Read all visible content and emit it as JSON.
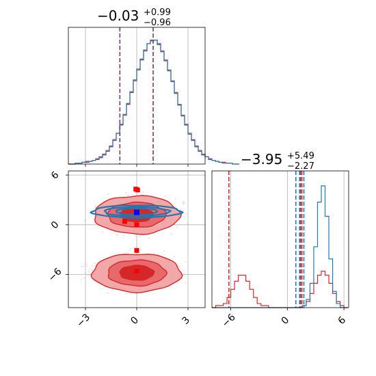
{
  "figure": {
    "type": "corner_plot",
    "colors": {
      "red": "#d62728",
      "blue": "#1f77b4",
      "marker_blue": "#0000ff",
      "marker_red": "#ff0000",
      "grid": "#b0b0b0",
      "fill_light": "#f0a0a0",
      "fill_dark": "#d62728"
    }
  },
  "chart_data": [
    {
      "panel": "top-left",
      "type": "histogram",
      "title": {
        "value": "−0.03",
        "plus": "+0.99",
        "minus": "−0.96"
      },
      "xlim": [
        -4,
        4
      ],
      "grid": true,
      "bins_edges_start": -4.0,
      "bin_width": 0.2,
      "series": [
        {
          "color": "red",
          "counts": [
            0,
            0,
            1,
            1,
            2,
            2,
            3,
            4,
            6,
            8,
            11,
            15,
            20,
            27,
            34,
            44,
            54,
            66,
            79,
            92,
            104,
            115,
            125,
            133,
            137,
            137,
            133,
            125,
            115,
            104,
            92,
            79,
            66,
            54,
            44,
            34,
            27,
            20,
            15,
            11,
            8,
            6,
            4,
            3,
            2,
            2,
            1,
            1,
            0,
            0
          ]
        },
        {
          "color": "blue",
          "counts": [
            0,
            0,
            1,
            1,
            2,
            3,
            3,
            4,
            5,
            7,
            10,
            14,
            19,
            26,
            34,
            43,
            55,
            67,
            80,
            93,
            105,
            116,
            126,
            133,
            136,
            137,
            132,
            124,
            114,
            103,
            91,
            78,
            65,
            53,
            43,
            33,
            26,
            19,
            14,
            10,
            8,
            5,
            4,
            3,
            2,
            1,
            1,
            1,
            0,
            0
          ]
        }
      ],
      "quantile_lines": [
        {
          "color": "red",
          "values": [
            -0.99,
            0.96
          ]
        },
        {
          "color": "blue",
          "values": [
            -0.98,
            0.97
          ]
        }
      ]
    },
    {
      "panel": "bottom-left",
      "type": "contour_scatter",
      "xlim": [
        -4,
        4
      ],
      "ylim": [
        -10,
        6.5
      ],
      "xticks": [
        -3,
        0,
        3
      ],
      "yticks": [
        -6,
        0,
        6
      ],
      "xtick_labels": [
        "−3",
        "0",
        "3"
      ],
      "ytick_labels": [
        "−6",
        "0",
        "6"
      ],
      "grid": true,
      "red_modes": [
        {
          "cx": 0.0,
          "cy": -5.8,
          "levels": [
            {
              "rx": 2.6,
              "ry": 2.3,
              "fill": "light"
            },
            {
              "rx": 1.7,
              "ry": 1.55,
              "fill": "mid"
            },
            {
              "rx": 1.0,
              "ry": 0.9,
              "fill": "dark"
            }
          ]
        },
        {
          "cx": 0.0,
          "cy": 1.2,
          "levels": [
            {
              "rx": 2.5,
              "ry": 2.3,
              "fill": "light"
            },
            {
              "rx": 1.7,
              "ry": 1.5,
              "fill": "mid"
            },
            {
              "rx": 0.95,
              "ry": 0.85,
              "fill": "dark"
            }
          ]
        }
      ],
      "blue_mode": {
        "cx": 0.0,
        "cy": 1.6,
        "levels": [
          {
            "rx": 2.6,
            "ry": 0.75
          },
          {
            "rx": 1.9,
            "ry": 0.55
          },
          {
            "rx": 1.2,
            "ry": 0.4
          }
        ]
      },
      "red_markers": [
        {
          "x": -0.05,
          "y": 4.3
        },
        {
          "x": 0.05,
          "y": 4.2
        },
        {
          "x": -0.7,
          "y": 0.4
        },
        {
          "x": 0.0,
          "y": 0.0
        },
        {
          "x": 0.0,
          "y": -3.1
        },
        {
          "x": 0.0,
          "y": -5.6
        }
      ],
      "blue_markers": [
        {
          "x": 0.0,
          "y": 1.5
        }
      ]
    },
    {
      "panel": "bottom-right",
      "type": "histogram",
      "title": {
        "value": "−3.95",
        "plus": "+5.49",
        "minus": "−2.27"
      },
      "xlim": [
        -8,
        6.5
      ],
      "xticks": [
        -6,
        0,
        6
      ],
      "xtick_labels": [
        "−6",
        "0",
        "6"
      ],
      "grid": true,
      "bins_edges_start": -8.0,
      "bin_width": 0.4,
      "series": [
        {
          "color": "red",
          "counts": [
            0,
            1,
            1,
            2,
            5,
            9,
            13,
            16,
            16,
            13,
            9,
            5,
            2,
            1,
            1,
            0,
            0,
            0,
            0,
            0,
            0,
            0,
            0,
            0,
            1,
            3,
            7,
            12,
            16,
            18,
            16,
            12,
            7,
            3,
            1,
            0
          ]
        },
        {
          "color": "blue",
          "counts": [
            0,
            0,
            0,
            0,
            0,
            0,
            0,
            0,
            0,
            0,
            0,
            0,
            0,
            0,
            0,
            0,
            0,
            0,
            0,
            0,
            0,
            0,
            0,
            0,
            1,
            4,
            12,
            30,
            52,
            60,
            45,
            24,
            8,
            2,
            0,
            0
          ]
        }
      ],
      "quantile_lines": [
        {
          "color": "red",
          "values": [
            -6.2,
            1.54
          ]
        },
        {
          "color": "blue",
          "values": [
            0.9,
            1.75
          ]
        }
      ],
      "center_lines": [
        {
          "color": "red",
          "value": 1.4
        },
        {
          "color": "blue",
          "value": 1.3
        }
      ]
    }
  ]
}
